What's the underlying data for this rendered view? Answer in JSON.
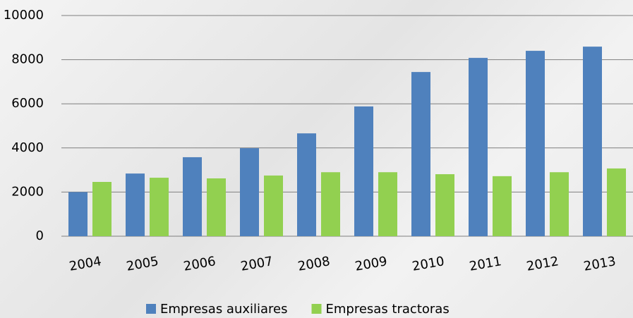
{
  "chart_data": {
    "type": "bar",
    "categories": [
      "2004",
      "2005",
      "2006",
      "2007",
      "2008",
      "2009",
      "2010",
      "2011",
      "2012",
      "2013"
    ],
    "series": [
      {
        "name": "Empresas auxiliares",
        "color": "#4f81bd",
        "values": [
          2000,
          2840,
          3580,
          3990,
          4660,
          5880,
          7440,
          8080,
          8400,
          8590
        ]
      },
      {
        "name": "Empresas tractoras",
        "color": "#92d050",
        "values": [
          2460,
          2650,
          2620,
          2750,
          2900,
          2900,
          2810,
          2720,
          2900,
          3070
        ]
      }
    ],
    "ylim": [
      0,
      10000
    ],
    "yticks": [
      0,
      2000,
      4000,
      6000,
      8000,
      10000
    ],
    "grid": true,
    "legend": "bottom"
  }
}
